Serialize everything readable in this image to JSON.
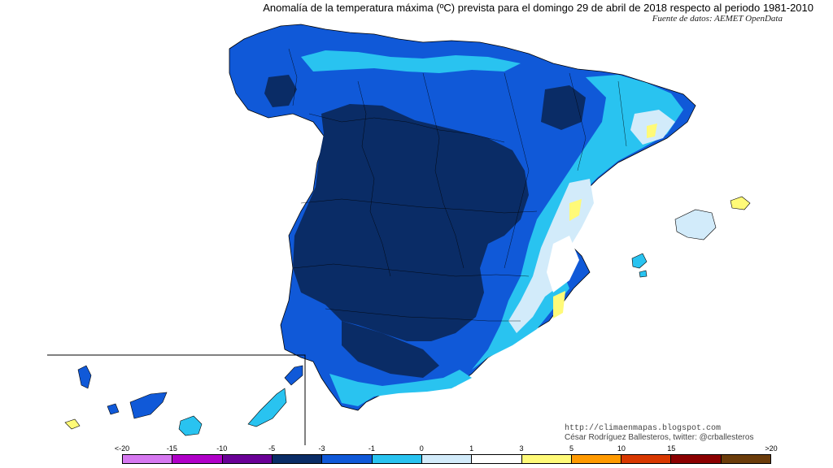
{
  "title": "Anomalía de la temperatura máxima (ºC) prevista para el domingo 29 de abril de 2018 respecto al periodo 1981-2010",
  "source": "Fuente de datos: AEMET OpenData",
  "credits": {
    "blog": "http://climaenmapas.blogspot.com",
    "author": "César Rodríguez Ballesteros, twitter: @crballesteros"
  },
  "legend": {
    "labels": [
      "<-20",
      "-15",
      "-10",
      "-5",
      "-3",
      "-1",
      "0",
      "1",
      "3",
      "5",
      "10",
      "15",
      ">20"
    ],
    "colors": [
      "#d678f0",
      "#b000c8",
      "#6a0096",
      "#0a2c66",
      "#1059d8",
      "#29c3f0",
      "#d2ebfa",
      "#ffffff",
      "#fffa78",
      "#ff9a00",
      "#d83800",
      "#8b0000",
      "#6b3c0a"
    ]
  },
  "map_colors": {
    "very_dark_blue": "#0a2c66",
    "medium_blue": "#1059d8",
    "light_blue": "#29c3f0",
    "pale_blue": "#d2ebfa",
    "white": "#ffffff",
    "yellow": "#fffa78"
  }
}
